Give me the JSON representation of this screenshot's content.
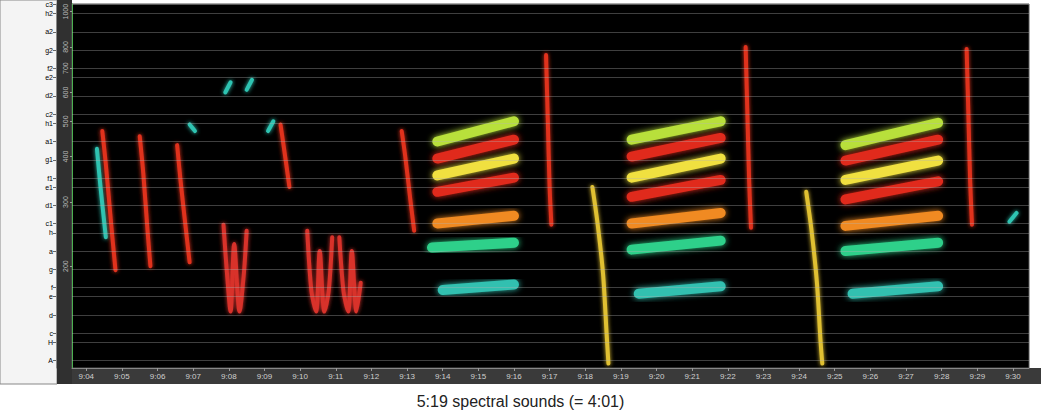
{
  "chart_data": {
    "type": "line",
    "title": "5:19 spectral sounds (= 4:01)",
    "log": "y",
    "grid": true,
    "tick_labels": true,
    "xlim": [
      3.6,
      30.45
    ],
    "xticks": [
      {
        "value": 4,
        "label": "9:04"
      },
      {
        "value": 5,
        "label": "9:05"
      },
      {
        "value": 6,
        "label": "9:06"
      },
      {
        "value": 7,
        "label": "9:07"
      },
      {
        "value": 8,
        "label": "9:08"
      },
      {
        "value": 9,
        "label": "9:09"
      },
      {
        "value": 10,
        "label": "9:10"
      },
      {
        "value": 11,
        "label": "9:11"
      },
      {
        "value": 12,
        "label": "9:12"
      },
      {
        "value": 13,
        "label": "9:13"
      },
      {
        "value": 14,
        "label": "9:14"
      },
      {
        "value": 15,
        "label": "9:15"
      },
      {
        "value": 16,
        "label": "9:16"
      },
      {
        "value": 17,
        "label": "9:17"
      },
      {
        "value": 18,
        "label": "9:18"
      },
      {
        "value": 19,
        "label": "9:19"
      },
      {
        "value": 20,
        "label": "9:20"
      },
      {
        "value": 21,
        "label": "9:21"
      },
      {
        "value": 22,
        "label": "9:22"
      },
      {
        "value": 23,
        "label": "9:23"
      },
      {
        "value": 24,
        "label": "9:24"
      },
      {
        "value": 25,
        "label": "9:25"
      },
      {
        "value": 26,
        "label": "9:26"
      },
      {
        "value": 27,
        "label": "9:27"
      },
      {
        "value": 28,
        "label": "9:28"
      },
      {
        "value": 29,
        "label": "9:29"
      },
      {
        "value": 30,
        "label": "9:30"
      }
    ],
    "ylim": [
      105,
      1050
    ],
    "yticks": [
      200,
      300,
      400,
      500,
      600,
      700,
      800,
      1000
    ],
    "y2lim": [
      105,
      1050
    ],
    "y2ticks": [
      {
        "value": 110,
        "label": "A"
      },
      {
        "value": 123.5,
        "label": "H"
      },
      {
        "value": 130.8,
        "label": "c"
      },
      {
        "value": 146.8,
        "label": "d"
      },
      {
        "value": 164.8,
        "label": "e"
      },
      {
        "value": 174.6,
        "label": "f"
      },
      {
        "value": 196,
        "label": "g"
      },
      {
        "value": 220,
        "label": "a"
      },
      {
        "value": 246.9,
        "label": "h"
      },
      {
        "value": 261.6,
        "label": "c1"
      },
      {
        "value": 293.7,
        "label": "d1"
      },
      {
        "value": 329.6,
        "label": "e1"
      },
      {
        "value": 349.2,
        "label": "f1"
      },
      {
        "value": 392,
        "label": "g1"
      },
      {
        "value": 440,
        "label": "a1"
      },
      {
        "value": 493.9,
        "label": "h1"
      },
      {
        "value": 523.3,
        "label": "c2"
      },
      {
        "value": 587.3,
        "label": "d2"
      },
      {
        "value": 659.3,
        "label": "e2"
      },
      {
        "value": 698.5,
        "label": "f2"
      },
      {
        "value": 784,
        "label": "g2"
      },
      {
        "value": 880,
        "label": "a2"
      },
      {
        "value": 987.8,
        "label": "h2"
      },
      {
        "value": 1046.5,
        "label": "c3"
      }
    ],
    "series": [
      {
        "color": "#2fc4b2",
        "line_style": "solid",
        "values": [
          [
            4.3,
            420
          ],
          [
            4.4,
            330
          ],
          [
            4.55,
            240
          ]
        ]
      },
      {
        "color": "#e0301e",
        "line_style": "solid",
        "values": [
          [
            4.45,
            470
          ],
          [
            4.55,
            380
          ],
          [
            4.7,
            260
          ],
          [
            4.82,
            195
          ]
        ]
      },
      {
        "color": "#e0301e",
        "line_style": "solid",
        "values": [
          [
            5.5,
            455
          ],
          [
            5.6,
            360
          ],
          [
            5.72,
            250
          ],
          [
            5.8,
            200
          ]
        ]
      },
      {
        "color": "#e0301e",
        "line_style": "solid",
        "values": [
          [
            6.55,
            430
          ],
          [
            6.65,
            340
          ],
          [
            6.8,
            250
          ],
          [
            6.9,
            205
          ]
        ]
      },
      {
        "color": "#2fc4b2",
        "line_style": "solid",
        "values": [
          [
            6.9,
            490
          ],
          [
            7.05,
            470
          ]
        ]
      },
      {
        "color": "#d8302a",
        "line_style": "solid",
        "values": [
          [
            7.85,
            260
          ],
          [
            7.95,
            190
          ],
          [
            8.05,
            150
          ],
          [
            8.15,
            230
          ],
          [
            8.3,
            150
          ],
          [
            8.42,
            190
          ],
          [
            8.5,
            250
          ]
        ]
      },
      {
        "color": "#2fc4b2",
        "line_style": "solid",
        "values": [
          [
            7.9,
            600
          ],
          [
            8.05,
            640
          ]
        ]
      },
      {
        "color": "#2fc4b2",
        "line_style": "solid",
        "values": [
          [
            8.5,
            610
          ],
          [
            8.65,
            650
          ]
        ]
      },
      {
        "color": "#2fc4b2",
        "line_style": "solid",
        "values": [
          [
            9.1,
            470
          ],
          [
            9.25,
            500
          ]
        ]
      },
      {
        "color": "#e0301e",
        "line_style": "solid",
        "values": [
          [
            9.45,
            490
          ],
          [
            9.55,
            420
          ],
          [
            9.7,
            330
          ]
        ]
      },
      {
        "color": "#d8302a",
        "line_style": "solid",
        "values": [
          [
            10.2,
            250
          ],
          [
            10.32,
            170
          ],
          [
            10.45,
            150
          ],
          [
            10.55,
            220
          ],
          [
            10.68,
            150
          ],
          [
            10.8,
            170
          ],
          [
            10.9,
            240
          ]
        ]
      },
      {
        "color": "#d8302a",
        "line_style": "solid",
        "values": [
          [
            11.1,
            240
          ],
          [
            11.22,
            170
          ],
          [
            11.35,
            150
          ],
          [
            11.45,
            220
          ],
          [
            11.58,
            150
          ],
          [
            11.7,
            180
          ]
        ]
      },
      {
        "color": "#e0301e",
        "line_style": "solid",
        "values": [
          [
            12.85,
            470
          ],
          [
            12.95,
            400
          ],
          [
            13.1,
            300
          ],
          [
            13.2,
            250
          ]
        ]
      },
      {
        "color": "#b8e03a",
        "line_style": "band",
        "values": [
          [
            13.85,
            440
          ],
          [
            16.0,
            500
          ]
        ]
      },
      {
        "color": "#e02a1c",
        "line_style": "band",
        "values": [
          [
            13.85,
            395
          ],
          [
            16.0,
            445
          ]
        ]
      },
      {
        "color": "#f0e040",
        "line_style": "band",
        "values": [
          [
            13.85,
            355
          ],
          [
            16.0,
            395
          ]
        ]
      },
      {
        "color": "#e02a1c",
        "line_style": "band",
        "values": [
          [
            13.85,
            320
          ],
          [
            16.0,
            350
          ]
        ]
      },
      {
        "color": "#f08a20",
        "line_style": "band",
        "values": [
          [
            13.85,
            262
          ],
          [
            16.0,
            275
          ]
        ]
      },
      {
        "color": "#2fd08a",
        "line_style": "band",
        "values": [
          [
            13.7,
            225
          ],
          [
            16.0,
            232
          ]
        ]
      },
      {
        "color": "#30c0b0",
        "line_style": "band",
        "values": [
          [
            14.0,
            172
          ],
          [
            16.0,
            178
          ]
        ]
      },
      {
        "color": "#e0301e",
        "line_style": "solid",
        "values": [
          [
            16.9,
            760
          ],
          [
            16.95,
            500
          ],
          [
            17.0,
            330
          ],
          [
            17.05,
            260
          ]
        ]
      },
      {
        "color": "#e0c030",
        "line_style": "solid",
        "values": [
          [
            18.2,
            330
          ],
          [
            18.35,
            260
          ],
          [
            18.5,
            190
          ],
          [
            18.6,
            130
          ],
          [
            18.65,
            108
          ]
        ]
      },
      {
        "color": "#b8e03a",
        "line_style": "band",
        "values": [
          [
            19.3,
            445
          ],
          [
            21.8,
            500
          ]
        ]
      },
      {
        "color": "#e02a1c",
        "line_style": "band",
        "values": [
          [
            19.3,
            400
          ],
          [
            21.8,
            450
          ]
        ]
      },
      {
        "color": "#f0e040",
        "line_style": "band",
        "values": [
          [
            19.3,
            350
          ],
          [
            21.8,
            395
          ]
        ]
      },
      {
        "color": "#e02a1c",
        "line_style": "band",
        "values": [
          [
            19.3,
            310
          ],
          [
            21.8,
            345
          ]
        ]
      },
      {
        "color": "#f08a20",
        "line_style": "band",
        "values": [
          [
            19.3,
            262
          ],
          [
            21.8,
            280
          ]
        ]
      },
      {
        "color": "#2fd08a",
        "line_style": "band",
        "values": [
          [
            19.3,
            222
          ],
          [
            21.8,
            235
          ]
        ]
      },
      {
        "color": "#30c0b0",
        "line_style": "band",
        "values": [
          [
            19.5,
            168
          ],
          [
            21.8,
            176
          ]
        ]
      },
      {
        "color": "#e0301e",
        "line_style": "solid",
        "values": [
          [
            22.5,
            800
          ],
          [
            22.55,
            520
          ],
          [
            22.6,
            340
          ],
          [
            22.65,
            255
          ]
        ]
      },
      {
        "color": "#e0c030",
        "line_style": "solid",
        "values": [
          [
            24.2,
            320
          ],
          [
            24.35,
            250
          ],
          [
            24.5,
            180
          ],
          [
            24.6,
            125
          ],
          [
            24.65,
            108
          ]
        ]
      },
      {
        "color": "#b8e03a",
        "line_style": "band",
        "values": [
          [
            25.3,
            430
          ],
          [
            27.9,
            495
          ]
        ]
      },
      {
        "color": "#e02a1c",
        "line_style": "band",
        "values": [
          [
            25.3,
            390
          ],
          [
            27.9,
            445
          ]
        ]
      },
      {
        "color": "#f0e040",
        "line_style": "band",
        "values": [
          [
            25.3,
            345
          ],
          [
            27.9,
            390
          ]
        ]
      },
      {
        "color": "#e02a1c",
        "line_style": "band",
        "values": [
          [
            25.3,
            305
          ],
          [
            27.9,
            342
          ]
        ]
      },
      {
        "color": "#f08a20",
        "line_style": "band",
        "values": [
          [
            25.3,
            258
          ],
          [
            27.9,
            275
          ]
        ]
      },
      {
        "color": "#2fd08a",
        "line_style": "band",
        "values": [
          [
            25.3,
            220
          ],
          [
            27.9,
            232
          ]
        ]
      },
      {
        "color": "#30c0b0",
        "line_style": "band",
        "values": [
          [
            25.5,
            168
          ],
          [
            27.9,
            176
          ]
        ]
      },
      {
        "color": "#e0301e",
        "line_style": "solid",
        "values": [
          [
            28.7,
            790
          ],
          [
            28.75,
            520
          ],
          [
            28.8,
            340
          ],
          [
            28.85,
            260
          ]
        ]
      },
      {
        "color": "#2fc4b2",
        "line_style": "solid",
        "values": [
          [
            29.9,
            265
          ],
          [
            30.1,
            280
          ]
        ]
      }
    ]
  }
}
